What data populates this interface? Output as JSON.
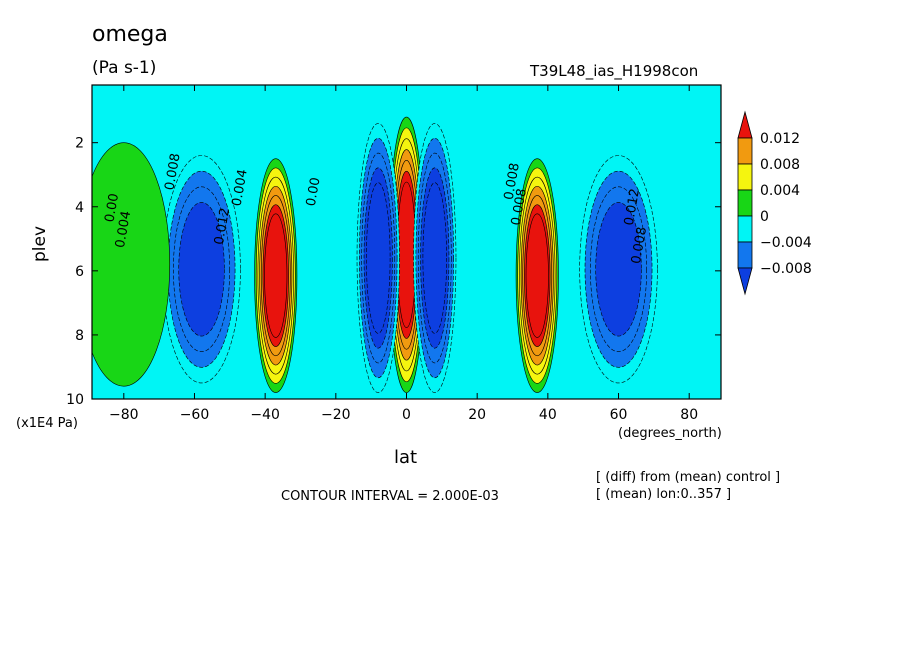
{
  "chart_data": {
    "type": "heatmap",
    "title": "omega",
    "units": "(Pa s-1)",
    "run_label": "T39L48_ias_H1998con",
    "xlabel": "lat",
    "xunits": "(degrees_north)",
    "ylabel": "plev",
    "yunits": "(x1E4 Pa)",
    "xlim": [
      -89,
      89
    ],
    "ylim": [
      10,
      0.2
    ],
    "x_ticks": [
      -80,
      -60,
      -40,
      -20,
      0,
      20,
      40,
      60,
      80
    ],
    "y_ticks": [
      2,
      4,
      6,
      8,
      10
    ],
    "contour_interval_text": "CONTOUR INTERVAL = 2.000E-03",
    "notes": [
      "[ (diff) from (mean) control ]",
      "[ (mean) lon:0..357 ]"
    ],
    "colorbar": {
      "labels": [
        "0.012",
        "0.008",
        "0.004",
        "0",
        "−0.004",
        "−0.008"
      ],
      "levels": [
        0.012,
        0.008,
        0.004,
        0,
        -0.004,
        -0.008
      ],
      "colors": [
        "#e8130d",
        "#f19a10",
        "#f5f50f",
        "#18d616",
        "#00f5f5",
        "#1277ee",
        "#0d3fe0"
      ]
    },
    "features": [
      {
        "lat": 0,
        "plev_top": 1.2,
        "plev_bottom": 9.8,
        "value": 0.014,
        "label": ""
      },
      {
        "lat": -8,
        "plev_top": 1.4,
        "plev_bottom": 9.8,
        "value": -0.01,
        "label": ""
      },
      {
        "lat": 8,
        "plev_top": 1.4,
        "plev_bottom": 9.8,
        "value": -0.01,
        "label": ""
      },
      {
        "lat": -37,
        "plev_top": 2.5,
        "plev_bottom": 9.8,
        "value": 0.014,
        "label": ""
      },
      {
        "lat": 37,
        "plev_top": 2.5,
        "plev_bottom": 9.8,
        "value": 0.014,
        "label": ""
      },
      {
        "lat": -58,
        "plev_top": 2.4,
        "plev_bottom": 9.5,
        "value": -0.008,
        "label": ""
      },
      {
        "lat": 60,
        "plev_top": 2.4,
        "plev_bottom": 9.5,
        "value": -0.008,
        "label": ""
      },
      {
        "lat": -80,
        "plev_top": 2.0,
        "plev_bottom": 9.6,
        "value": 0.002,
        "label": ""
      }
    ],
    "contour_labels": [
      "0.00",
      "0.004",
      "0.008",
      "0.012",
      "0.004",
      "0.008",
      "0.00",
      "0.008",
      "0.012",
      "0.008"
    ]
  }
}
